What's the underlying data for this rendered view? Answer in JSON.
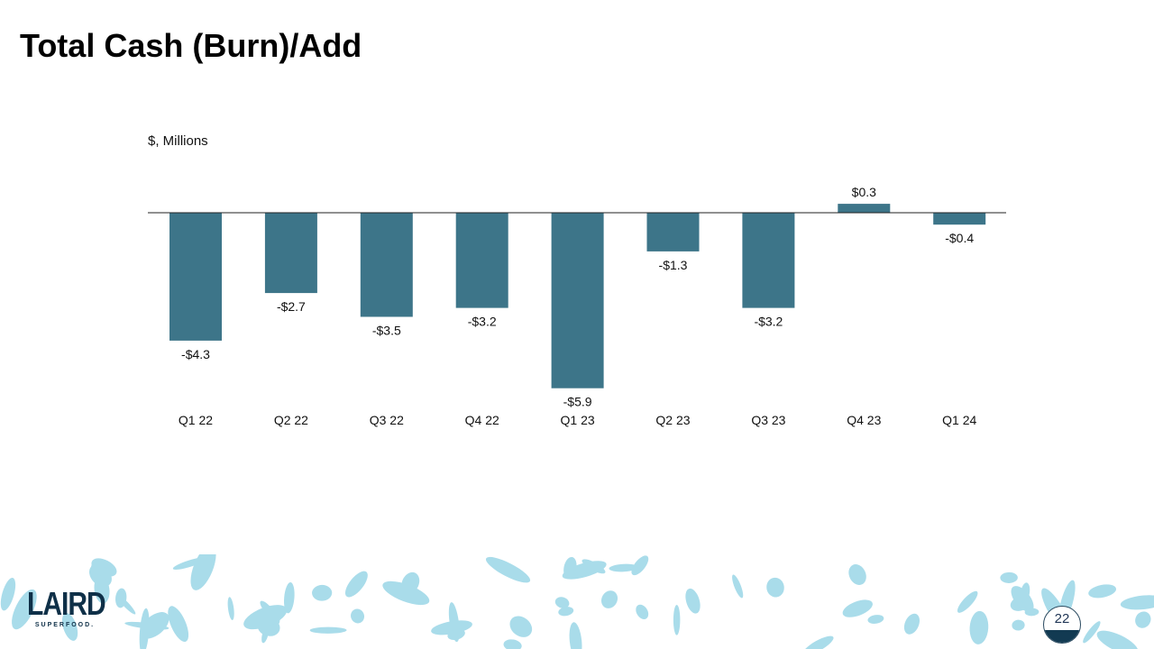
{
  "title": "Total Cash (Burn)/Add",
  "unit_label": "$, Millions",
  "page_number": "22",
  "logo": {
    "text": "LAIRD",
    "subtext": "SUPERFOOD."
  },
  "colors": {
    "bar": "#3d7589",
    "decor": "#a9dcea",
    "logo": "#0f3048"
  },
  "chart_data": {
    "type": "bar",
    "categories": [
      "Q1 22",
      "Q2 22",
      "Q3 22",
      "Q4 22",
      "Q1 23",
      "Q2 23",
      "Q3 23",
      "Q4 23",
      "Q1 24"
    ],
    "values": [
      -4.3,
      -2.7,
      -3.5,
      -3.2,
      -5.9,
      -1.3,
      -3.2,
      0.3,
      -0.4
    ],
    "data_labels": [
      "-$4.3",
      "-$2.7",
      "-$3.5",
      "-$3.2",
      "-$5.9",
      "-$1.3",
      "-$3.2",
      "$0.3",
      "-$0.4"
    ],
    "ylabel": "$, Millions",
    "grid": false,
    "legend": "none"
  }
}
